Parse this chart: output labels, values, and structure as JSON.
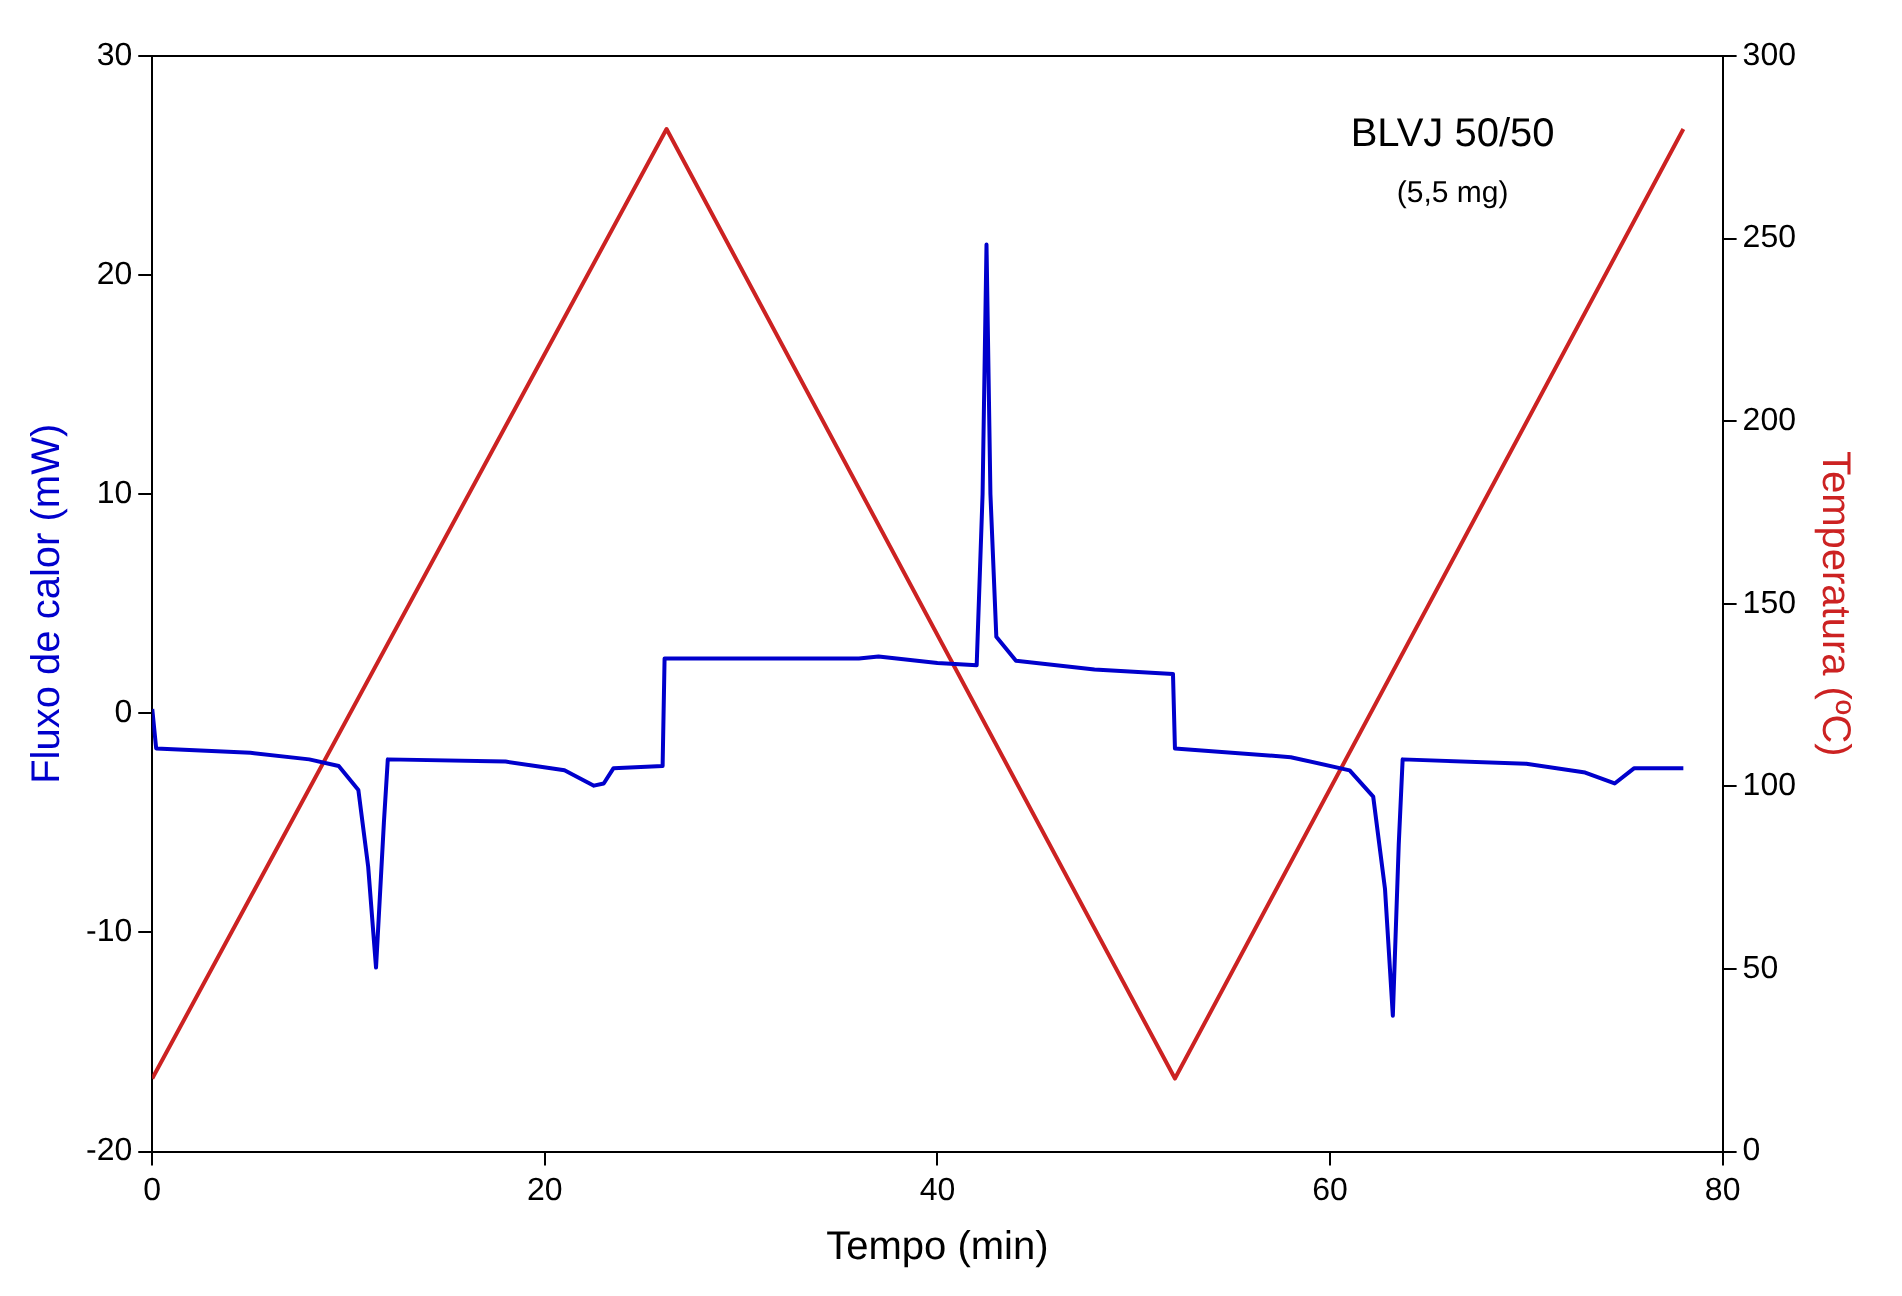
{
  "chart_data": {
    "type": "line",
    "xlabel": "Tempo (min)",
    "ylabel": "Fluxo de calor (mW)",
    "y2label": "Temperatura (ºC)",
    "annotations": [
      "BLVJ 50/50",
      "(5,5 mg)"
    ],
    "xlim": [
      0,
      80
    ],
    "xticks": [
      0,
      20,
      40,
      60,
      80
    ],
    "ylim": [
      -20,
      30
    ],
    "yticks": [
      -20,
      -10,
      0,
      10,
      20,
      30
    ],
    "y2lim": [
      0,
      300
    ],
    "y2ticks": [
      0,
      50,
      100,
      150,
      200,
      250,
      300
    ],
    "grid": false,
    "legend": false,
    "marker": "none",
    "line_style": "solid",
    "series": [
      {
        "color": "#0000cc",
        "x": [
          0,
          0.2,
          5,
          8,
          9.5,
          10.5,
          11,
          11.4,
          11.8,
          12,
          18,
          21,
          22.5,
          23,
          23.5,
          26,
          26.1,
          30,
          36,
          37,
          40,
          42,
          42.3,
          42.5,
          42.7,
          43,
          44,
          48,
          52,
          52.1,
          58,
          61,
          62.2,
          62.8,
          63.2,
          63.5,
          63.7,
          70,
          73,
          74.5,
          75.5,
          78
        ],
        "values": [
          0.2,
          -1.6,
          -1.8,
          -2.1,
          -2.4,
          -3.5,
          -7,
          -11.6,
          -5,
          -2.1,
          -2.2,
          -2.6,
          -3.3,
          -3.2,
          -2.5,
          -2.4,
          2.5,
          2.5,
          2.5,
          2.6,
          2.3,
          2.2,
          10,
          21.4,
          10,
          3.5,
          2.4,
          2,
          1.8,
          -1.6,
          -2,
          -2.6,
          -3.8,
          -8,
          -13.8,
          -6,
          -2.1,
          -2.3,
          -2.7,
          -3.2,
          -2.5,
          -2.5
        ]
      },
      {
        "color": "#cc2222",
        "axis": "y2",
        "x": [
          0,
          26.2,
          52.1,
          78
        ],
        "values": [
          20,
          280,
          20,
          280
        ]
      }
    ]
  }
}
